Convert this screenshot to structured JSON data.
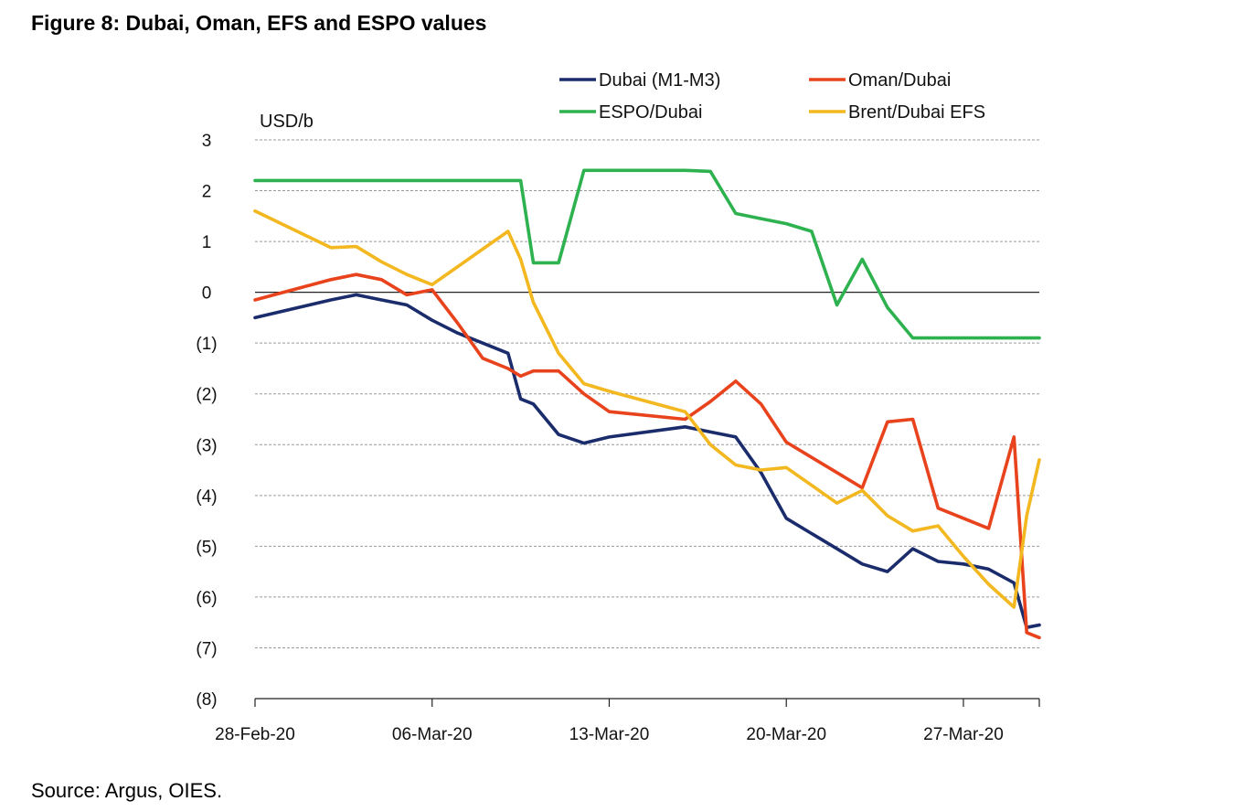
{
  "figure": {
    "title": "Figure 8: Dubai, Oman, EFS and ESPO values",
    "source": "Source: Argus, OIES."
  },
  "chart_data": {
    "type": "line",
    "ylabel": "USD/b",
    "ylim": [
      -8,
      3
    ],
    "y_ticks": [
      3,
      2,
      1,
      0,
      -1,
      -2,
      -3,
      -4,
      -5,
      -6,
      -7,
      -8
    ],
    "y_tick_labels": [
      "3",
      "2",
      "1",
      "0",
      "(1)",
      "(2)",
      "(3)",
      "(4)",
      "(5)",
      "(6)",
      "(7)",
      "(8)"
    ],
    "x_range": [
      0,
      30
    ],
    "x_ticks": [
      0,
      7,
      14,
      21,
      28
    ],
    "x_tick_labels": [
      "28-Feb-20",
      "06-Mar-20",
      "13-Mar-20",
      "20-Mar-20",
      "27-Mar-20"
    ],
    "grid": true,
    "legend_position": "top-right",
    "series": [
      {
        "name": "Dubai (M1-M3)",
        "color": "#1a2c6b",
        "x": [
          0,
          3,
          4,
          5,
          6,
          7,
          8,
          9,
          10,
          10.5,
          11,
          12,
          13,
          14,
          17,
          18,
          19,
          20,
          21,
          22,
          23,
          24,
          25,
          26,
          27,
          28,
          29,
          30,
          30.5,
          31
        ],
        "y": [
          -0.5,
          -0.15,
          -0.05,
          -0.15,
          -0.25,
          -0.55,
          -0.8,
          -1.0,
          -1.2,
          -2.1,
          -2.2,
          -2.8,
          -2.97,
          -2.85,
          -2.65,
          -2.75,
          -2.85,
          -3.55,
          -4.45,
          -4.75,
          -5.05,
          -5.35,
          -5.5,
          -5.05,
          -5.3,
          -5.35,
          -5.45,
          -5.72,
          -6.6,
          -6.55
        ]
      },
      {
        "name": "Oman/Dubai",
        "color": "#e8431c",
        "x": [
          0,
          3,
          4,
          5,
          6,
          7,
          8,
          9,
          10,
          10.5,
          11,
          12,
          13,
          14,
          17,
          18,
          19,
          20,
          21,
          22,
          23,
          24,
          25,
          26,
          27,
          28,
          29,
          30,
          30.5,
          31
        ],
        "y": [
          -0.15,
          0.25,
          0.35,
          0.25,
          -0.05,
          0.05,
          -0.6,
          -1.3,
          -1.5,
          -1.65,
          -1.55,
          -1.55,
          -2.0,
          -2.35,
          -2.5,
          -2.15,
          -1.75,
          -2.2,
          -2.95,
          -3.25,
          -3.55,
          -3.85,
          -2.55,
          -2.5,
          -4.25,
          -4.45,
          -4.65,
          -2.85,
          -6.7,
          -6.8
        ]
      },
      {
        "name": "ESPO/Dubai",
        "color": "#2eb24f",
        "x": [
          0,
          10,
          10.5,
          11,
          12,
          13,
          14,
          17,
          18,
          19,
          20,
          21,
          22,
          23,
          24,
          25,
          26,
          27,
          28,
          29,
          30,
          31
        ],
        "y": [
          2.2,
          2.2,
          2.2,
          0.58,
          0.58,
          2.4,
          2.4,
          2.4,
          2.38,
          1.55,
          1.45,
          1.35,
          1.2,
          -0.25,
          0.65,
          -0.3,
          -0.9,
          -0.9,
          -0.9,
          -0.9,
          -0.9,
          -0.9
        ]
      },
      {
        "name": "Brent/Dubai EFS",
        "color": "#f3b71f",
        "x": [
          0,
          3,
          4,
          5,
          6,
          7,
          8,
          9,
          10,
          10.5,
          11,
          12,
          13,
          14,
          17,
          18,
          19,
          20,
          21,
          22,
          23,
          24,
          25,
          26,
          27,
          28,
          29,
          30,
          30.5,
          31
        ],
        "y": [
          1.6,
          0.88,
          0.9,
          0.6,
          0.35,
          0.15,
          0.5,
          0.85,
          1.2,
          0.65,
          -0.2,
          -1.2,
          -1.8,
          -1.95,
          -2.35,
          -3.0,
          -3.4,
          -3.5,
          -3.45,
          -3.8,
          -4.15,
          -3.9,
          -4.4,
          -4.7,
          -4.6,
          -5.2,
          -5.75,
          -6.2,
          -4.4,
          -3.3
        ]
      }
    ]
  }
}
